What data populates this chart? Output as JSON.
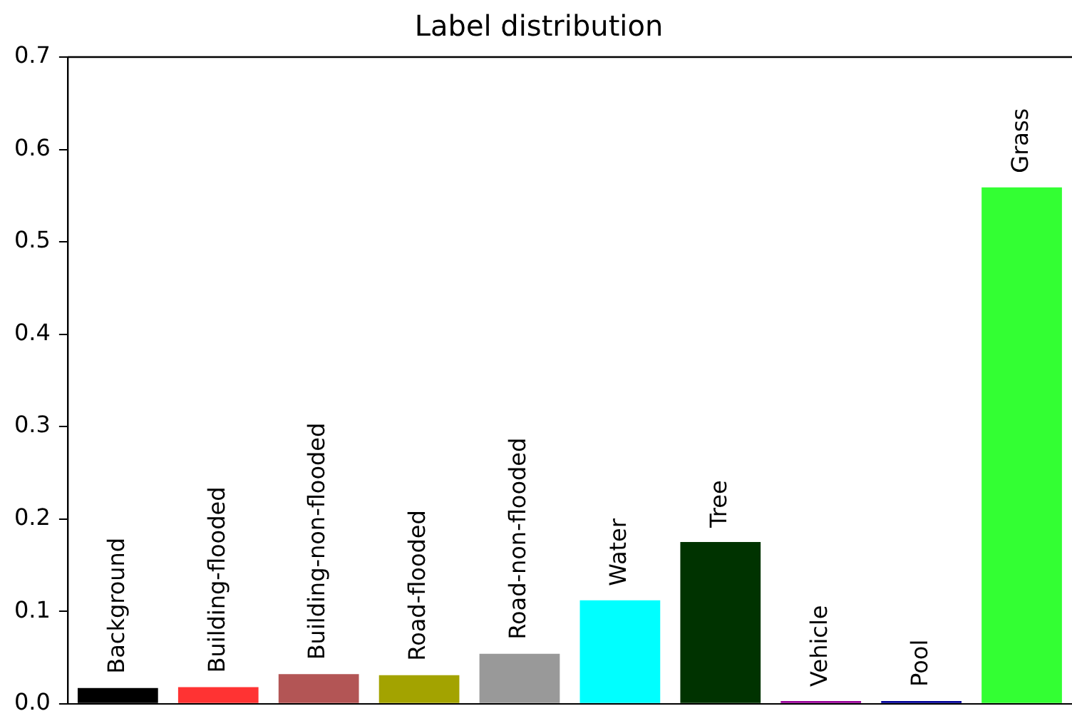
{
  "chart_data": {
    "type": "bar",
    "title": "Label distribution",
    "categories": [
      "Background",
      "Building-flooded",
      "Building-non-flooded",
      "Road-flooded",
      "Road-non-flooded",
      "Water",
      "Tree",
      "Vehicle",
      "Pool",
      "Grass"
    ],
    "values": [
      0.017,
      0.018,
      0.032,
      0.031,
      0.054,
      0.112,
      0.175,
      0.003,
      0.003,
      0.559
    ],
    "colors": [
      "#000000",
      "#ff3333",
      "#b35555",
      "#a3a300",
      "#999999",
      "#00ffff",
      "#003300",
      "#990099",
      "#000099",
      "#33ff33"
    ],
    "ylim": [
      0,
      0.7
    ],
    "yticks": [
      {
        "value": 0,
        "label": "0.0"
      },
      {
        "value": 0.1,
        "label": "0.1"
      },
      {
        "value": 0.2,
        "label": "0.2"
      },
      {
        "value": 0.3,
        "label": "0.3"
      },
      {
        "value": 0.4,
        "label": "0.4"
      },
      {
        "value": 0.5,
        "label": "0.5"
      },
      {
        "value": 0.6,
        "label": "0.6"
      },
      {
        "value": 0.7,
        "label": "0.7"
      }
    ],
    "tick_labels": "y",
    "grid": false,
    "legend": false
  }
}
